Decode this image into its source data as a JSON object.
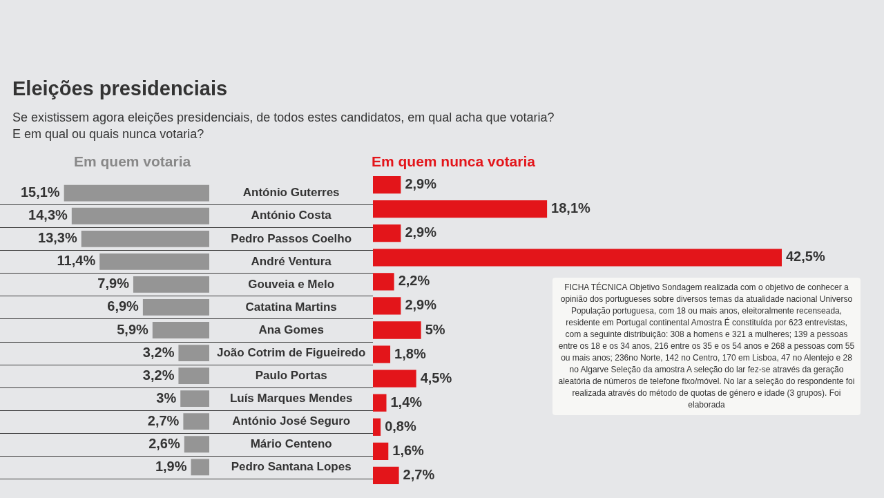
{
  "chart_data": [
    {
      "type": "bar",
      "orientation": "horizontal",
      "title": "Eleições presidenciais",
      "subtitle": "Se existissem agora eleições presidenciais, de todos estes candidatos, em qual acha que votaria?\nE em qual ou quais nunca votaria?",
      "categories": [
        "António Guterres",
        "António Costa",
        "Pedro Passos Coelho",
        "André Ventura",
        "Gouveia e Melo",
        "Catatina Martins",
        "Ana Gomes",
        "João Cotrim de Figueiredo",
        "Paulo Portas",
        "Luís Marques Mendes",
        "António José Seguro",
        "Mário Centeno",
        "Pedro Santana Lopes"
      ],
      "series": [
        {
          "name": "Em quem votaria",
          "color": "#959595",
          "values": [
            15.1,
            14.3,
            13.3,
            11.4,
            7.9,
            6.9,
            5.9,
            3.2,
            3.2,
            3,
            2.7,
            2.6,
            1.9
          ],
          "value_labels": [
            "15,1%",
            "14,3%",
            "13,3%",
            "11,4%",
            "7,9%",
            "6,9%",
            "5,9%",
            "3,2%",
            "3,2%",
            "3%",
            "2,7%",
            "2,6%",
            "1,9%"
          ]
        }
      ],
      "legend": false
    },
    {
      "type": "bar",
      "orientation": "horizontal",
      "categories": [
        null,
        null,
        null,
        null,
        null,
        null,
        null,
        null,
        null,
        null,
        null,
        null,
        null
      ],
      "series": [
        {
          "name": "Em quem nunca votaria",
          "color": "#e3151a",
          "values": [
            2.9,
            18.1,
            2.9,
            42.5,
            2.2,
            2.9,
            5,
            1.8,
            4.5,
            1.4,
            0.8,
            1.6,
            2.7
          ],
          "value_labels": [
            "2,9%",
            "18,1%",
            "2,9%",
            "42,5%",
            "2,2%",
            "2,9%",
            "5%",
            "1,8%",
            "4,5%",
            "1,4%",
            "0,8%",
            "1,6%",
            "2,7%"
          ]
        }
      ],
      "legend": false,
      "tick_labels": false,
      "annotations": [
        "FICHA TÉCNICA Objetivo Sondagem realizada com o objetivo de conhecer a opinião dos portugueses sobre diversos temas da atualidade nacional Universo População portuguesa, com 18 ou mais anos, eleitoralmente recenseada, residente em Portugal continental Amostra É constituída por 623 entrevistas, com a seguinte distribuição: 308 a homens e 321 a mulheres; 139 a pessoas entre os 18 e os 34 anos, 216 entre os 35 e os 54 anos e 268 a pessoas com 55 ou mais anos; 236no Norte, 142 no Centro, 170 em Lisboa, 47 no Alentejo e 28 no Algarve Seleção da amostra A seleção do lar fez-se através da geração aleatória de números de telefone fixo/móvel. No lar a seleção do respondente foi realizada através do método de quotas de género e idade (3 grupos). Foi elaborada"
      ]
    }
  ]
}
